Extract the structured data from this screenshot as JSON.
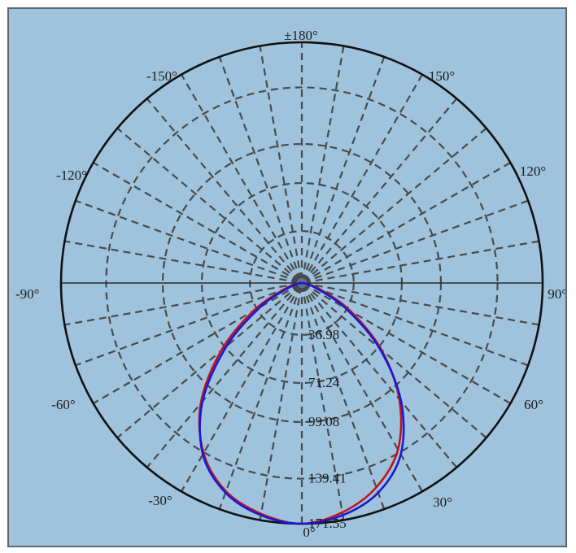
{
  "chart_data": {
    "type": "polar",
    "title": "",
    "angle_labels": [
      {
        "angle": 0,
        "text": "0°"
      },
      {
        "angle": 30,
        "text": "30°"
      },
      {
        "angle": 60,
        "text": "60°"
      },
      {
        "angle": 90,
        "text": "90°"
      },
      {
        "angle": 120,
        "text": "120°"
      },
      {
        "angle": 150,
        "text": "150°"
      },
      {
        "angle": 180,
        "text": "±180°"
      },
      {
        "angle": -150,
        "text": "-150°"
      },
      {
        "angle": -120,
        "text": "-120°"
      },
      {
        "angle": -90,
        "text": "-90°"
      },
      {
        "angle": -60,
        "text": "-60°"
      },
      {
        "angle": -30,
        "text": "-30°"
      }
    ],
    "radial_ticks": [
      {
        "value": 36.98,
        "text": "36.98"
      },
      {
        "value": 71.24,
        "text": "71.24"
      },
      {
        "value": 99.08,
        "text": "99.08"
      },
      {
        "value": 139.41,
        "text": "139.41"
      },
      {
        "value": 171.55,
        "text": "171.55"
      }
    ],
    "rmax": 171.55,
    "angle_zero": "bottom",
    "angle_direction": "counterclockwise toward right",
    "grid": true,
    "series": [
      {
        "color": "#c0121c",
        "theta": [
          -90,
          -80,
          -70,
          -60,
          -50,
          -40,
          -30,
          -20,
          -10,
          0,
          10,
          20,
          30,
          40,
          50,
          60,
          70,
          80,
          90
        ],
        "r": [
          0,
          3,
          14,
          40,
          75,
          112,
          140,
          158,
          167,
          171.55,
          166,
          155,
          137,
          108,
          74,
          40,
          15,
          4,
          0
        ]
      },
      {
        "color": "#1a1ad2",
        "theta": [
          -90,
          -80,
          -70,
          -60,
          -50,
          -40,
          -30,
          -20,
          -10,
          0,
          10,
          20,
          30,
          40,
          50,
          60,
          70,
          80,
          90
        ],
        "r": [
          0,
          2,
          10,
          34,
          70,
          110,
          141,
          159,
          168,
          171.55,
          168,
          159,
          141,
          110,
          72,
          36,
          11,
          3,
          0
        ]
      }
    ]
  }
}
